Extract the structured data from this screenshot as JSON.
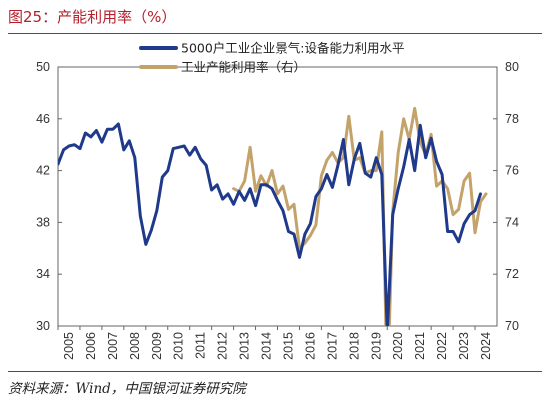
{
  "title": "图25：产能利用率（%）",
  "source": "资料来源：Wind，中国银河证券研究院",
  "chart_data": {
    "type": "line",
    "x_tick_labels": [
      "2005",
      "2006",
      "2007",
      "2008",
      "2009",
      "2010",
      "2011",
      "2012",
      "2013",
      "2014",
      "2015",
      "2016",
      "2017",
      "2018",
      "2019",
      "2020",
      "2021",
      "2022",
      "2023",
      "2024"
    ],
    "left_axis": {
      "ylim": [
        30,
        50
      ],
      "ticks": [
        30,
        34,
        38,
        42,
        46,
        50
      ]
    },
    "right_axis": {
      "ylim": [
        70,
        80
      ],
      "ticks": [
        70,
        72,
        74,
        76,
        78,
        80
      ]
    },
    "legend_position": "top",
    "grid": false,
    "series": [
      {
        "name": "5000户工业企业景气:设备能力利用水平",
        "axis": "left",
        "color": "#1f3a8a",
        "points": [
          [
            2005.0,
            42.5
          ],
          [
            2005.25,
            43.6
          ],
          [
            2005.5,
            43.9
          ],
          [
            2005.75,
            44.0
          ],
          [
            2006.0,
            43.7
          ],
          [
            2006.25,
            44.9
          ],
          [
            2006.5,
            44.6
          ],
          [
            2006.75,
            45.1
          ],
          [
            2007.0,
            44.2
          ],
          [
            2007.25,
            45.2
          ],
          [
            2007.5,
            45.2
          ],
          [
            2007.75,
            45.6
          ],
          [
            2008.0,
            43.6
          ],
          [
            2008.25,
            44.3
          ],
          [
            2008.5,
            43.0
          ],
          [
            2008.75,
            38.5
          ],
          [
            2009.0,
            36.3
          ],
          [
            2009.25,
            37.4
          ],
          [
            2009.5,
            38.9
          ],
          [
            2009.75,
            41.5
          ],
          [
            2010.0,
            42.0
          ],
          [
            2010.25,
            43.7
          ],
          [
            2010.5,
            43.8
          ],
          [
            2010.75,
            43.9
          ],
          [
            2011.0,
            43.2
          ],
          [
            2011.25,
            43.8
          ],
          [
            2011.5,
            42.9
          ],
          [
            2011.75,
            42.4
          ],
          [
            2012.0,
            40.5
          ],
          [
            2012.25,
            40.9
          ],
          [
            2012.5,
            39.8
          ],
          [
            2012.75,
            40.2
          ],
          [
            2013.0,
            39.4
          ],
          [
            2013.25,
            40.4
          ],
          [
            2013.5,
            39.7
          ],
          [
            2013.75,
            40.6
          ],
          [
            2014.0,
            39.3
          ],
          [
            2014.25,
            40.9
          ],
          [
            2014.5,
            40.9
          ],
          [
            2014.75,
            40.6
          ],
          [
            2015.0,
            39.7
          ],
          [
            2015.25,
            38.9
          ],
          [
            2015.5,
            37.3
          ],
          [
            2015.75,
            37.1
          ],
          [
            2016.0,
            35.3
          ],
          [
            2016.25,
            37.1
          ],
          [
            2016.5,
            37.9
          ],
          [
            2016.75,
            40.0
          ],
          [
            2017.0,
            40.6
          ],
          [
            2017.25,
            41.7
          ],
          [
            2017.5,
            40.7
          ],
          [
            2017.75,
            42.4
          ],
          [
            2018.0,
            44.4
          ],
          [
            2018.25,
            40.9
          ],
          [
            2018.5,
            42.9
          ],
          [
            2018.75,
            44.1
          ],
          [
            2019.0,
            41.8
          ],
          [
            2019.25,
            41.5
          ],
          [
            2019.5,
            43.0
          ],
          [
            2019.75,
            41.7
          ],
          [
            2020.0,
            29.5
          ],
          [
            2020.25,
            38.6
          ],
          [
            2020.5,
            40.6
          ],
          [
            2020.75,
            42.3
          ],
          [
            2021.0,
            44.4
          ],
          [
            2021.25,
            42.0
          ],
          [
            2021.5,
            45.5
          ],
          [
            2021.75,
            43.0
          ],
          [
            2022.0,
            44.5
          ],
          [
            2022.25,
            42.7
          ],
          [
            2022.5,
            41.7
          ],
          [
            2022.75,
            37.3
          ],
          [
            2023.0,
            37.3
          ],
          [
            2023.25,
            36.5
          ],
          [
            2023.5,
            37.9
          ],
          [
            2023.75,
            38.6
          ],
          [
            2024.0,
            38.9
          ],
          [
            2024.25,
            40.2
          ]
        ]
      },
      {
        "name": "工业产能利用率（右）",
        "axis": "right",
        "color": "#c4a36b",
        "points": [
          [
            2013.0,
            75.3
          ],
          [
            2013.25,
            75.2
          ],
          [
            2013.5,
            75.6
          ],
          [
            2013.75,
            76.9
          ],
          [
            2014.0,
            75.2
          ],
          [
            2014.25,
            75.8
          ],
          [
            2014.5,
            75.4
          ],
          [
            2014.75,
            76.0
          ],
          [
            2015.0,
            75.1
          ],
          [
            2015.25,
            75.4
          ],
          [
            2015.5,
            74.5
          ],
          [
            2015.75,
            74.7
          ],
          [
            2016.0,
            73.0
          ],
          [
            2016.25,
            73.2
          ],
          [
            2016.5,
            73.5
          ],
          [
            2016.75,
            73.9
          ],
          [
            2017.0,
            75.8
          ],
          [
            2017.25,
            76.4
          ],
          [
            2017.5,
            76.7
          ],
          [
            2017.75,
            76.3
          ],
          [
            2018.0,
            76.5
          ],
          [
            2018.25,
            78.1
          ],
          [
            2018.5,
            76.4
          ],
          [
            2018.75,
            76.5
          ],
          [
            2019.0,
            75.9
          ],
          [
            2019.25,
            76.0
          ],
          [
            2019.5,
            76.0
          ],
          [
            2019.75,
            77.5
          ],
          [
            2020.0,
            67.3
          ],
          [
            2020.25,
            74.4
          ],
          [
            2020.5,
            76.7
          ],
          [
            2020.75,
            78.0
          ],
          [
            2021.0,
            77.2
          ],
          [
            2021.25,
            78.4
          ],
          [
            2021.5,
            77.1
          ],
          [
            2021.75,
            76.6
          ],
          [
            2022.0,
            77.4
          ],
          [
            2022.25,
            75.4
          ],
          [
            2022.5,
            75.6
          ],
          [
            2022.75,
            75.3
          ],
          [
            2023.0,
            74.3
          ],
          [
            2023.25,
            74.5
          ],
          [
            2023.5,
            75.6
          ],
          [
            2023.75,
            75.9
          ],
          [
            2024.0,
            73.6
          ],
          [
            2024.25,
            74.8
          ],
          [
            2024.5,
            75.1
          ]
        ]
      }
    ]
  }
}
